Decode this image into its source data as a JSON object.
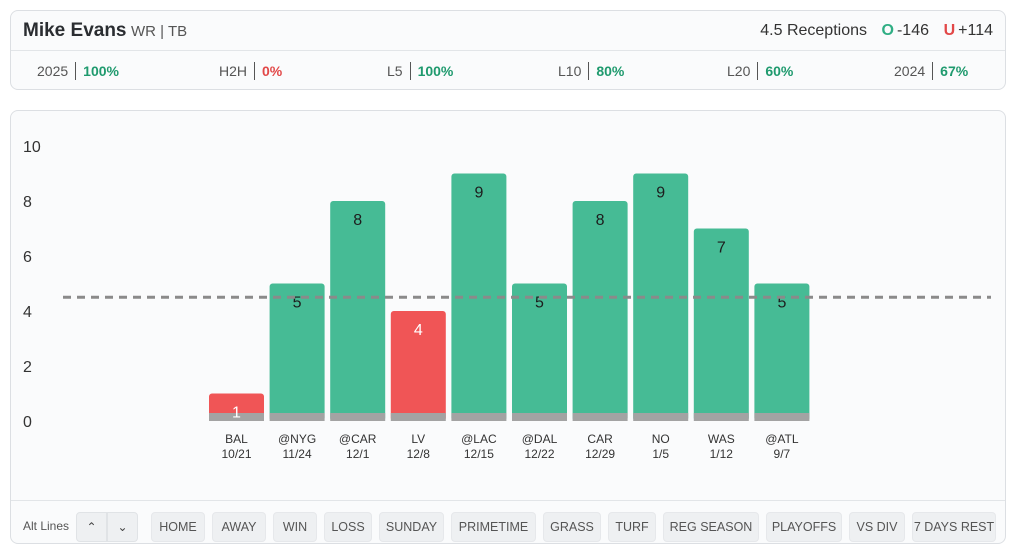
{
  "header": {
    "player_name": "Mike Evans",
    "player_meta": "WR | TB",
    "prop_line": "4.5 Receptions",
    "over_letter": "O",
    "over_odds": "-146",
    "under_letter": "U",
    "under_odds": "+114"
  },
  "splits": [
    {
      "label": "2025",
      "value": "100%",
      "status": "pos"
    },
    {
      "label": "H2H",
      "value": "0%",
      "status": "neg"
    },
    {
      "label": "L5",
      "value": "100%",
      "status": "pos"
    },
    {
      "label": "L10",
      "value": "80%",
      "status": "pos"
    },
    {
      "label": "L20",
      "value": "60%",
      "status": "pos"
    },
    {
      "label": "2024",
      "value": "67%",
      "status": "pos"
    }
  ],
  "chart_data": {
    "type": "bar",
    "categories": [
      "BAL 10/21",
      "@NYG 11/24",
      "@CAR 12/1",
      "LV 12/8",
      "@LAC 12/15",
      "@DAL 12/22",
      "CAR 12/29",
      "NO 1/5",
      "WAS 1/12",
      "@ATL 9/7"
    ],
    "opponents": [
      "BAL",
      "@NYG",
      "@CAR",
      "LV",
      "@LAC",
      "@DAL",
      "CAR",
      "NO",
      "WAS",
      "@ATL"
    ],
    "dates": [
      "10/21",
      "11/24",
      "12/1",
      "12/8",
      "12/15",
      "12/22",
      "12/29",
      "1/5",
      "1/12",
      "9/7"
    ],
    "values": [
      1,
      5,
      8,
      4,
      9,
      5,
      8,
      9,
      7,
      5
    ],
    "line": 4.5,
    "ylim": [
      0,
      10
    ],
    "yticks": [
      0,
      2,
      4,
      6,
      8,
      10
    ],
    "grid": false,
    "colors": {
      "over": "#46bb95",
      "under": "#f05556",
      "base": "#a3a3a3",
      "line": "#8a8a8a"
    }
  },
  "filters": {
    "alt_lines_label": "Alt Lines",
    "up_icon": "chevron-up-icon",
    "down_icon": "chevron-down-icon",
    "up_glyph": "⌃",
    "down_glyph": "⌄",
    "buttons": [
      "HOME",
      "AWAY",
      "WIN",
      "LOSS",
      "SUNDAY",
      "PRIMETIME",
      "GRASS",
      "TURF",
      "REG SEASON",
      "PLAYOFFS",
      "VS DIV",
      "7 DAYS REST"
    ]
  }
}
